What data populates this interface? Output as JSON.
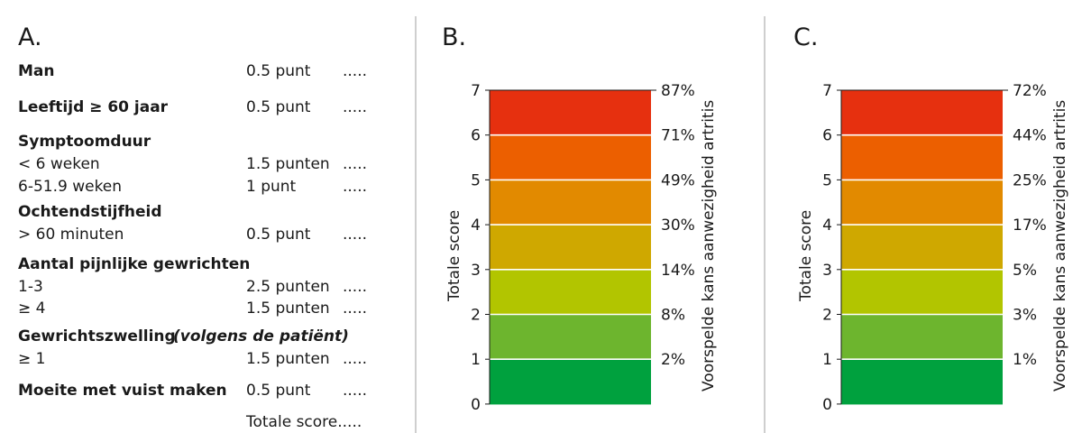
{
  "panel_a": {
    "letter": "A.",
    "rows": [
      {
        "label": "Man",
        "points": "0.5 punt",
        "dots": ".....",
        "bold": true
      },
      {
        "label": "Leeftijd ≥ 60 jaar",
        "points": "0.5 punt",
        "dots": ".....",
        "bold": true
      },
      {
        "label": "Symptoomduur",
        "points": "",
        "dots": "",
        "bold": true
      },
      {
        "label": "< 6 weken",
        "points": "1.5 punten",
        "dots": ".....",
        "bold": false
      },
      {
        "label": "6-51.9 weken",
        "points": "1 punt",
        "dots": ".....",
        "bold": false
      },
      {
        "label": "Ochtendstijfheid",
        "points": "",
        "dots": "",
        "bold": true
      },
      {
        "label": "> 60 minuten",
        "points": "0.5 punt",
        "dots": ".....",
        "bold": false
      },
      {
        "label": "Aantal pijnlijke gewrichten",
        "points": "",
        "dots": "",
        "bold": true
      },
      {
        "label": "1-3",
        "points": "2.5 punten",
        "dots": ".....",
        "bold": false
      },
      {
        "label": "≥ 4",
        "points": "1.5 punten",
        "dots": ".....",
        "bold": false
      },
      {
        "label": "Gewrichtszwelling",
        "italic_suffix": "(volgens de patiënt)",
        "points": "",
        "dots": "",
        "bold": true
      },
      {
        "label": "≥ 1",
        "points": "1.5 punten",
        "dots": ".....",
        "bold": false
      },
      {
        "label": "Moeite met vuist maken",
        "points": "0.5 punt",
        "dots": ".....",
        "bold": true
      }
    ],
    "total_label": "Totale score.....",
    "colors": {
      "text": "#1a1a1a"
    }
  },
  "panel_b": {
    "letter": "B.",
    "y_axis_label": "Totale score",
    "right_axis_label": "Voorspelde kans aanwezigheid artritis",
    "scores": [
      "0",
      "1",
      "2",
      "3",
      "4",
      "5",
      "6",
      "7"
    ],
    "probabilities": [
      "2%",
      "8%",
      "14%",
      "30%",
      "49%",
      "71%",
      "87%"
    ]
  },
  "panel_c": {
    "letter": "C.",
    "y_axis_label": "Totale score",
    "right_axis_label": "Voorspelde kans aanwezigheid artritis",
    "scores": [
      "0",
      "1",
      "2",
      "3",
      "4",
      "5",
      "6",
      "7"
    ],
    "probabilities": [
      "1%",
      "3%",
      "5%",
      "17%",
      "25%",
      "44%",
      "72%"
    ]
  },
  "band_colors": [
    "#00a13e",
    "#6db52e",
    "#b2c500",
    "#cfa800",
    "#e28a00",
    "#ec5f00",
    "#e6300f"
  ],
  "divider_color": "#cfcfcf"
}
